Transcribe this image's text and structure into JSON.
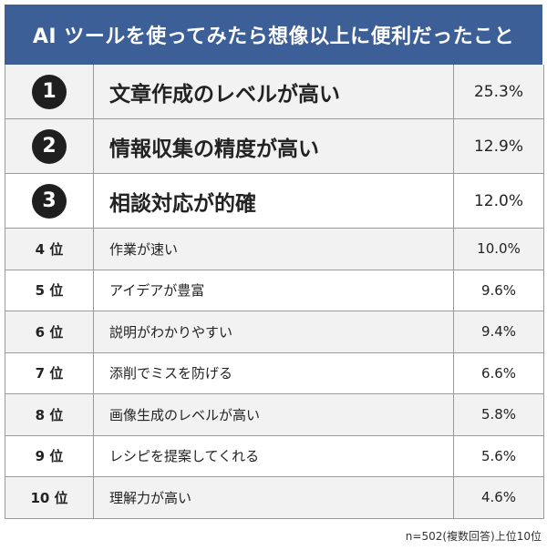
{
  "title": "AI ツールを使ってみたら想像以上に便利だったこと",
  "note": "n=502(複数回答)上位10位",
  "chart_data": {
    "type": "table",
    "title": "AI ツールを使ってみたら想像以上に便利だったこと",
    "columns": [
      "rank",
      "item",
      "percent"
    ],
    "rows": [
      {
        "rank": "1",
        "item": "文章作成のレベルが高い",
        "value_label": "25.3%",
        "value": 25.3
      },
      {
        "rank": "2",
        "item": "情報収集の精度が高い",
        "value_label": "12.9%",
        "value": 12.9
      },
      {
        "rank": "3",
        "item": "相談対応が的確",
        "value_label": "12.0%",
        "value": 12.0
      },
      {
        "rank": "4 位",
        "item": "作業が速い",
        "value_label": "10.0%",
        "value": 10.0
      },
      {
        "rank": "5 位",
        "item": "アイデアが豊富",
        "value_label": "9.6%",
        "value": 9.6
      },
      {
        "rank": "6 位",
        "item": "説明がわかりやすい",
        "value_label": "9.4%",
        "value": 9.4
      },
      {
        "rank": "7 位",
        "item": "添削でミスを防げる",
        "value_label": "6.6%",
        "value": 6.6
      },
      {
        "rank": "8 位",
        "item": "画像生成のレベルが高い",
        "value_label": "5.8%",
        "value": 5.8
      },
      {
        "rank": "9 位",
        "item": "レシピを提案してくれる",
        "value_label": "5.6%",
        "value": 5.6
      },
      {
        "rank": "10 位",
        "item": "理解力が高い",
        "value_label": "4.6%",
        "value": 4.6
      }
    ]
  },
  "colors": {
    "header_bg": "#3d5f97",
    "badge_bg": "#1f1f1f",
    "row_alt": "#f2f2f2"
  }
}
